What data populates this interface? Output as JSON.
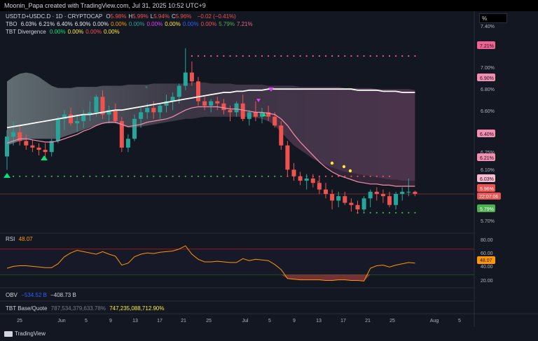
{
  "credit": "Moonin_Papa created with TradingView.com, Jul 31, 2025 10:52 UTC+9",
  "brand": "TradingView",
  "scale_toggle": "%",
  "legend": {
    "symbol": "USDT.D+USDC.D · 1D · CRYPTOCAP",
    "ohlc": [
      {
        "k": "O",
        "v": "5.98%"
      },
      {
        "k": "H",
        "v": "5.99%"
      },
      {
        "k": "L",
        "v": "5.94%"
      },
      {
        "k": "C",
        "v": "5.96%"
      }
    ],
    "change": "−0.02 (−0.41%)",
    "tbo_label": "TBO",
    "tbo_values": [
      {
        "v": "6.03%",
        "c": "#e3e5ea"
      },
      {
        "v": "6.21%",
        "c": "#e3e5ea"
      },
      {
        "v": "6.40%",
        "c": "#e3e5ea"
      },
      {
        "v": "6.90%",
        "c": "#e3e5ea"
      },
      {
        "v": "0.00%",
        "c": "#e3e5ea"
      },
      {
        "v": "0.00%",
        "c": "#ff9800"
      },
      {
        "v": "0.00%",
        "c": "#26a69a"
      },
      {
        "v": "0.00%",
        "c": "#e040fb"
      },
      {
        "v": "0.00%",
        "c": "#ffeb3b"
      },
      {
        "v": "0.00%",
        "c": "#2962ff"
      },
      {
        "v": "0.00%",
        "c": "#ef5350"
      },
      {
        "v": "5.79%",
        "c": "#4caf50"
      },
      {
        "v": "7.21%",
        "c": "#f06292"
      }
    ],
    "div_label": "TBT Divergence",
    "div_values": [
      {
        "v": "0.00%",
        "c": "#00e676"
      },
      {
        "v": "0.00%",
        "c": "#ffeb3b"
      },
      {
        "v": "0.00%",
        "c": "#ef5350"
      },
      {
        "v": "0.00%",
        "c": "#ffeb3b"
      }
    ]
  },
  "rsi": {
    "label": "RSI",
    "value": "48.07",
    "ticks": [
      "80.00",
      "60.00",
      "40.00",
      "20.00"
    ]
  },
  "obv": {
    "label": "OBV",
    "value1": "−534.52 B",
    "value2": "−408.73 B"
  },
  "tbt": {
    "label": "TBT Base/Quote",
    "value1": "787,534,379,633.78%",
    "value2": "747,235,088,712.90%"
  },
  "chart_data": {
    "type": "candlestick",
    "y_axis_ticks": [
      "7.40%",
      "7.00%",
      "6.80%",
      "6.60%",
      "6.25%",
      "6.10%",
      "5.70%"
    ],
    "y_axis_ticks_dim": [
      "6.40%",
      "5.90%"
    ],
    "price_tags": [
      {
        "v": "7.21%",
        "c": "#f06292"
      },
      {
        "v": "6.90%",
        "c": "#f48fb1"
      },
      {
        "v": "6.40%",
        "c": "#f48fb1"
      },
      {
        "v": "6.21%",
        "c": "#f48fb1"
      },
      {
        "v": "6.03%",
        "c": "#f8bbd0"
      },
      {
        "v": "5.96%",
        "c": "#ef5350"
      },
      {
        "v": "5.79%",
        "c": "#4caf50"
      }
    ],
    "countdown": "22:07:06",
    "x_axis_labels": [
      "25",
      "Jun",
      "5",
      "9",
      "13",
      "17",
      "21",
      "25",
      "Jul",
      "5",
      "9",
      "13",
      "17",
      "21",
      "25",
      "Aug",
      "5"
    ],
    "candles": [
      [
        6.3,
        6.54,
        6.18,
        6.48
      ],
      [
        6.48,
        6.62,
        6.4,
        6.52
      ],
      [
        6.52,
        6.58,
        6.4,
        6.44
      ],
      [
        6.44,
        6.5,
        6.36,
        6.4
      ],
      [
        6.4,
        6.45,
        6.34,
        6.38
      ],
      [
        6.38,
        6.42,
        6.31,
        6.36
      ],
      [
        6.36,
        6.42,
        6.28,
        6.34
      ],
      [
        6.34,
        6.46,
        6.3,
        6.44
      ],
      [
        6.44,
        6.66,
        6.42,
        6.64
      ],
      [
        6.64,
        6.72,
        6.54,
        6.68
      ],
      [
        6.68,
        6.74,
        6.58,
        6.6
      ],
      [
        6.6,
        6.68,
        6.52,
        6.62
      ],
      [
        6.62,
        6.72,
        6.56,
        6.68
      ],
      [
        6.68,
        6.8,
        6.62,
        6.7
      ],
      [
        6.7,
        6.86,
        6.66,
        6.84
      ],
      [
        6.84,
        6.9,
        6.64,
        6.68
      ],
      [
        6.68,
        6.76,
        6.6,
        6.72
      ],
      [
        6.72,
        6.78,
        6.6,
        6.62
      ],
      [
        6.62,
        6.66,
        6.34,
        6.38
      ],
      [
        6.38,
        6.5,
        6.34,
        6.46
      ],
      [
        6.46,
        6.68,
        6.44,
        6.64
      ],
      [
        6.64,
        6.74,
        6.56,
        6.7
      ],
      [
        6.7,
        6.78,
        6.64,
        6.74
      ],
      [
        6.74,
        6.8,
        6.64,
        6.7
      ],
      [
        6.7,
        6.78,
        6.64,
        6.76
      ],
      [
        6.76,
        6.86,
        6.7,
        6.8
      ],
      [
        6.8,
        6.88,
        6.72,
        6.84
      ],
      [
        6.84,
        6.96,
        6.78,
        6.94
      ],
      [
        6.94,
        7.28,
        6.9,
        7.06
      ],
      [
        7.06,
        7.16,
        6.94,
        6.98
      ],
      [
        6.98,
        7.02,
        6.76,
        6.8
      ],
      [
        6.8,
        6.84,
        6.72,
        6.76
      ],
      [
        6.76,
        6.82,
        6.7,
        6.8
      ],
      [
        6.8,
        6.84,
        6.72,
        6.78
      ],
      [
        6.78,
        6.82,
        6.68,
        6.72
      ],
      [
        6.72,
        6.76,
        6.62,
        6.7
      ],
      [
        6.7,
        6.8,
        6.66,
        6.78
      ],
      [
        6.78,
        6.86,
        6.62,
        6.64
      ],
      [
        6.64,
        6.72,
        6.58,
        6.7
      ],
      [
        6.7,
        6.8,
        6.62,
        6.66
      ],
      [
        6.66,
        6.74,
        6.6,
        6.7
      ],
      [
        6.7,
        6.76,
        6.62,
        6.66
      ],
      [
        6.66,
        6.7,
        6.56,
        6.58
      ],
      [
        6.58,
        6.62,
        6.36,
        6.4
      ],
      [
        6.4,
        6.44,
        6.12,
        6.18
      ],
      [
        6.18,
        6.24,
        6.08,
        6.12
      ],
      [
        6.12,
        6.16,
        6.04,
        6.08
      ],
      [
        6.08,
        6.14,
        6.0,
        6.1
      ],
      [
        6.1,
        6.14,
        6.02,
        6.06
      ],
      [
        6.06,
        6.12,
        5.96,
        6.0
      ],
      [
        6.0,
        6.06,
        5.92,
        5.96
      ],
      [
        5.96,
        6.0,
        5.82,
        5.9
      ],
      [
        5.9,
        5.98,
        5.84,
        5.94
      ],
      [
        5.94,
        5.98,
        5.86,
        5.88
      ],
      [
        5.88,
        5.92,
        5.8,
        5.86
      ],
      [
        5.86,
        5.9,
        5.78,
        5.82
      ],
      [
        5.82,
        5.94,
        5.8,
        5.92
      ],
      [
        5.92,
        6.0,
        5.84,
        5.98
      ],
      [
        5.98,
        6.02,
        5.9,
        5.96
      ],
      [
        5.96,
        6.0,
        5.88,
        5.94
      ],
      [
        5.94,
        5.98,
        5.84,
        5.86
      ],
      [
        5.86,
        5.98,
        5.82,
        5.96
      ],
      [
        5.96,
        6.02,
        5.9,
        5.98
      ],
      [
        5.98,
        6.1,
        5.94,
        5.98
      ],
      [
        5.98,
        5.99,
        5.94,
        5.96
      ]
    ],
    "white_line": [
      6.56,
      6.57,
      6.58,
      6.59,
      6.6,
      6.61,
      6.62,
      6.63,
      6.64,
      6.65,
      6.66,
      6.67,
      6.68,
      6.68,
      6.69,
      6.7,
      6.71,
      6.72,
      6.72,
      6.73,
      6.74,
      6.75,
      6.76,
      6.77,
      6.78,
      6.79,
      6.8,
      6.81,
      6.82,
      6.83,
      6.84,
      6.85,
      6.86,
      6.87,
      6.88,
      6.88,
      6.89,
      6.89,
      6.9,
      6.9,
      6.9,
      6.91,
      6.91,
      6.91,
      6.91,
      6.91,
      6.91,
      6.91,
      6.91,
      6.91,
      6.91,
      6.91,
      6.91,
      6.91,
      6.91,
      6.9,
      6.9,
      6.9,
      6.9,
      6.89,
      6.89,
      6.89,
      6.88,
      6.88,
      6.88
    ],
    "pink_line": [
      6.42,
      6.44,
      6.46,
      6.46,
      6.45,
      6.44,
      6.43,
      6.43,
      6.44,
      6.46,
      6.48,
      6.5,
      6.53,
      6.55,
      6.58,
      6.6,
      6.61,
      6.61,
      6.59,
      6.57,
      6.58,
      6.59,
      6.61,
      6.62,
      6.63,
      6.64,
      6.66,
      6.69,
      6.72,
      6.74,
      6.75,
      6.75,
      6.75,
      6.75,
      6.74,
      6.73,
      6.73,
      6.72,
      6.71,
      6.7,
      6.7,
      6.69,
      6.68,
      6.64,
      6.58,
      6.5,
      6.43,
      6.37,
      6.31,
      6.25,
      6.2,
      6.16,
      6.13,
      6.11,
      6.09,
      6.07,
      6.06,
      6.05,
      6.05,
      6.04,
      6.04,
      6.03,
      6.03,
      6.03,
      6.03
    ],
    "band_upper": [
      6.98,
      7.02,
      7.05,
      7.06,
      7.05,
      7.02,
      6.98,
      6.94,
      6.92,
      6.92,
      6.92,
      6.93,
      6.93,
      6.93,
      6.93,
      6.94,
      6.94,
      6.94,
      6.94,
      6.95,
      6.95,
      6.95,
      6.95,
      6.96,
      6.96,
      6.96,
      6.96,
      6.96,
      6.96,
      6.97,
      6.97,
      6.97,
      6.96,
      6.96,
      6.96,
      6.96,
      6.95,
      6.95,
      6.95,
      6.95,
      6.95,
      6.94,
      6.94,
      6.94,
      6.94,
      6.94,
      6.93,
      6.93,
      6.93,
      6.93,
      6.93,
      6.93,
      6.93,
      6.92,
      6.92,
      6.92,
      6.92,
      6.92,
      6.91,
      6.91,
      6.91,
      6.91,
      6.91,
      6.91,
      6.9
    ],
    "band_lower": [
      6.4,
      6.42,
      6.44,
      6.45,
      6.46,
      6.46,
      6.46,
      6.46,
      6.46,
      6.48,
      6.5,
      6.52,
      6.54,
      6.56,
      6.58,
      6.6,
      6.6,
      6.6,
      6.58,
      6.56,
      6.56,
      6.57,
      6.58,
      6.59,
      6.6,
      6.61,
      6.62,
      6.63,
      6.64,
      6.64,
      6.65,
      6.66,
      6.66,
      6.66,
      6.66,
      6.66,
      6.66,
      6.66,
      6.66,
      6.65,
      6.64,
      6.62,
      6.58,
      6.52,
      6.46,
      6.4,
      6.36,
      6.32,
      6.28,
      6.25,
      6.22,
      6.2,
      6.18,
      6.16,
      6.15,
      6.14,
      6.13,
      6.12,
      6.11,
      6.1,
      6.09,
      6.09,
      6.08,
      6.08,
      6.08
    ],
    "dotted_levels": [
      {
        "v": 7.21,
        "c": "#f06292",
        "from": 29
      },
      {
        "v": 6.12,
        "c": "#4caf50",
        "from": 0,
        "to": 43
      },
      {
        "v": 6.12,
        "c": "#ef5350",
        "from": 44,
        "to": 60
      },
      {
        "v": 5.79,
        "c": "#4caf50",
        "from": 55
      }
    ],
    "rsi_values": [
      40,
      43,
      44,
      44,
      43,
      42,
      41,
      41,
      47,
      58,
      64,
      68,
      66,
      64,
      62,
      66,
      62,
      59,
      45,
      48,
      58,
      62,
      64,
      63,
      65,
      66,
      67,
      70,
      75,
      62,
      54,
      50,
      50,
      51,
      50,
      49,
      49,
      55,
      52,
      54,
      53,
      52,
      46,
      38,
      24,
      23,
      22,
      22,
      22,
      22,
      21,
      21,
      22,
      22,
      21,
      21,
      20,
      40,
      44,
      45,
      42,
      45,
      47,
      49,
      48
    ]
  }
}
